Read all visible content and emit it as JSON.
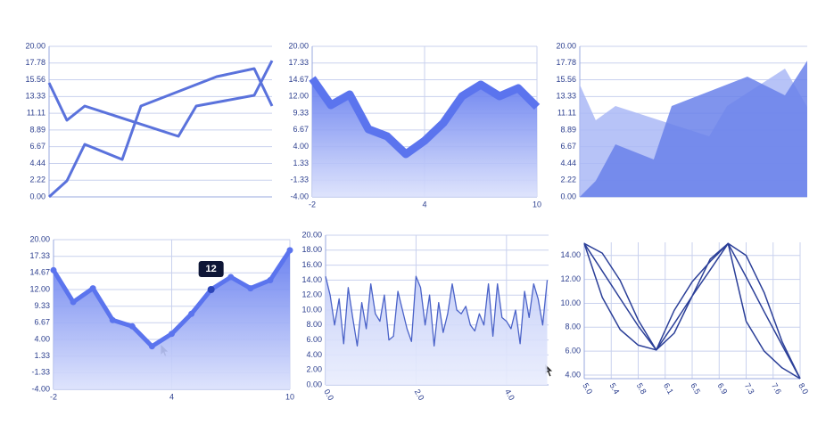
{
  "chart_data": [
    {
      "type": "line",
      "ylim": [
        0,
        20
      ],
      "xlim": [
        0,
        10
      ],
      "yticks": [
        {
          "value": 0,
          "label": "0.00"
        },
        {
          "value": 2.22,
          "label": "2.22"
        },
        {
          "value": 4.44,
          "label": "4.44"
        },
        {
          "value": 6.67,
          "label": "6.67"
        },
        {
          "value": 8.89,
          "label": "8.89"
        },
        {
          "value": 11.11,
          "label": "11.11"
        },
        {
          "value": 13.33,
          "label": "13.33"
        },
        {
          "value": 15.56,
          "label": "15.56"
        },
        {
          "value": 17.78,
          "label": "17.78"
        },
        {
          "value": 20,
          "label": "20.00"
        }
      ],
      "grid": true,
      "series": [
        {
          "color": "#5a72dc",
          "x": [
            0,
            0.8,
            1.6,
            5.8,
            6.6,
            9.2,
            10
          ],
          "values": [
            15.15,
            10.18,
            12.07,
            8.05,
            12.07,
            13.49,
            18.1
          ]
        },
        {
          "color": "#5a72dc",
          "x": [
            0,
            0.8,
            1.6,
            3.28,
            4.12,
            7.52,
            9.2,
            10
          ],
          "values": [
            0,
            2.13,
            6.98,
            4.97,
            12.07,
            15.98,
            17.04,
            12.07
          ]
        }
      ]
    },
    {
      "type": "area",
      "ylim": [
        -4,
        20
      ],
      "xlim": [
        -2,
        10
      ],
      "yticks": [
        {
          "value": -4,
          "label": "-4.00"
        },
        {
          "value": -1.33,
          "label": "-1.33"
        },
        {
          "value": 1.33,
          "label": "1.33"
        },
        {
          "value": 4,
          "label": "4.00"
        },
        {
          "value": 6.67,
          "label": "6.67"
        },
        {
          "value": 9.33,
          "label": "9.33"
        },
        {
          "value": 12,
          "label": "12.00"
        },
        {
          "value": 14.67,
          "label": "14.67"
        },
        {
          "value": 17.33,
          "label": "17.33"
        },
        {
          "value": 20,
          "label": "20.00"
        }
      ],
      "xticks": [
        -2,
        4,
        10
      ],
      "grid": true,
      "x": [
        -2,
        -1,
        0,
        1,
        2,
        3,
        4,
        5,
        6,
        7,
        8,
        9,
        10
      ],
      "series": [
        {
          "color": "#5b74ee",
          "values": [
            14.89,
            10.63,
            12.33,
            6.79,
            5.66,
            2.82,
            4.95,
            7.79,
            12.05,
            13.89,
            12.05,
            13.33,
            10.34
          ]
        }
      ]
    },
    {
      "type": "area",
      "ylim": [
        0,
        20
      ],
      "xlim": [
        0,
        10
      ],
      "yticks": [
        {
          "value": 0,
          "label": "0.00"
        },
        {
          "value": 2.22,
          "label": "2.22"
        },
        {
          "value": 4.44,
          "label": "4.44"
        },
        {
          "value": 6.67,
          "label": "6.67"
        },
        {
          "value": 8.89,
          "label": "8.89"
        },
        {
          "value": 11.11,
          "label": "11.11"
        },
        {
          "value": 13.33,
          "label": "13.33"
        },
        {
          "value": 15.56,
          "label": "15.56"
        },
        {
          "value": 17.78,
          "label": "17.78"
        },
        {
          "value": 20,
          "label": "20.00"
        }
      ],
      "grid": true,
      "series": [
        {
          "color": "#aab8f6",
          "x": [
            0,
            0.7,
            1.57,
            5.69,
            6.47,
            9.02,
            10
          ],
          "values": [
            14.91,
            10.18,
            12.07,
            8.05,
            12.07,
            17.04,
            11.95
          ]
        },
        {
          "color": "#6a81ea",
          "x": [
            0,
            0.7,
            1.57,
            3.25,
            4.04,
            7.37,
            9.02,
            10
          ],
          "values": [
            0,
            2.13,
            6.98,
            4.97,
            12.07,
            15.98,
            13.49,
            18.1
          ]
        }
      ]
    },
    {
      "type": "area",
      "markers": true,
      "ylim": [
        -4,
        20
      ],
      "xlim": [
        -2,
        10
      ],
      "yticks": [
        {
          "value": -4,
          "label": "-4.00"
        },
        {
          "value": -1.33,
          "label": "-1.33"
        },
        {
          "value": 1.33,
          "label": "1.33"
        },
        {
          "value": 4,
          "label": "4.00"
        },
        {
          "value": 6.67,
          "label": "6.67"
        },
        {
          "value": 9.33,
          "label": "9.33"
        },
        {
          "value": 12,
          "label": "12.00"
        },
        {
          "value": 14.67,
          "label": "14.67"
        },
        {
          "value": 17.33,
          "label": "17.33"
        },
        {
          "value": 20,
          "label": "20.00"
        }
      ],
      "xticks": [
        -2,
        4,
        10
      ],
      "grid": true,
      "x": [
        -2,
        -1,
        0,
        1,
        2,
        3,
        4,
        5,
        6,
        7,
        8,
        9,
        10
      ],
      "series": [
        {
          "color": "#5b74ee",
          "values": [
            15.1,
            10.0,
            12.2,
            7.1,
            6.1,
            2.9,
            4.9,
            8.1,
            12,
            14.0,
            12.2,
            13.5,
            18.3
          ]
        }
      ],
      "tooltip": "12"
    },
    {
      "type": "area",
      "ylim": [
        0,
        20
      ],
      "xlim": [
        0,
        4.93
      ],
      "yticks": [
        {
          "value": 0,
          "label": "0.00"
        },
        {
          "value": 2,
          "label": "2.00"
        },
        {
          "value": 4,
          "label": "4.00"
        },
        {
          "value": 6,
          "label": "6.00"
        },
        {
          "value": 8,
          "label": "8.00"
        },
        {
          "value": 10,
          "label": "10.00"
        },
        {
          "value": 12,
          "label": "12.00"
        },
        {
          "value": 14,
          "label": "14.00"
        },
        {
          "value": 16,
          "label": "16.00"
        },
        {
          "value": 18,
          "label": "18.00"
        },
        {
          "value": 20,
          "label": "20.00"
        }
      ],
      "xticks": [
        {
          "value": 0,
          "label": "0.0"
        },
        {
          "value": 2,
          "label": "2.0"
        },
        {
          "value": 4,
          "label": "4.0"
        }
      ],
      "grid": true,
      "x": [
        0,
        0.1,
        0.2,
        0.3,
        0.4,
        0.5,
        0.6,
        0.7,
        0.8,
        0.9,
        1,
        1.1,
        1.2,
        1.3,
        1.4,
        1.5,
        1.6,
        1.7,
        1.8,
        1.9,
        2,
        2.1,
        2.2,
        2.3,
        2.4,
        2.5,
        2.6,
        2.7,
        2.8,
        2.9,
        3,
        3.1,
        3.2,
        3.3,
        3.4,
        3.5,
        3.6,
        3.7,
        3.8,
        3.9,
        4,
        4.1,
        4.2,
        4.3,
        4.4,
        4.5,
        4.6,
        4.7,
        4.8,
        4.9
      ],
      "series": [
        {
          "color": "#4a62c8",
          "values": [
            14.5,
            12.0,
            8.0,
            11.5,
            5.5,
            13.0,
            9.0,
            5.2,
            11.0,
            7.5,
            13.5,
            9.5,
            8.5,
            12.0,
            6.0,
            6.5,
            12.5,
            10.0,
            7.5,
            5.8,
            14.5,
            13.0,
            8.0,
            12.0,
            5.2,
            11.0,
            7.0,
            9.5,
            13.5,
            10.0,
            9.5,
            10.5,
            8.0,
            7.2,
            9.5,
            8.0,
            13.5,
            6.5,
            13.5,
            9.0,
            8.5,
            7.5,
            10.0,
            5.5,
            12.5,
            9.0,
            13.5,
            11.5,
            8.0,
            14.0
          ]
        }
      ]
    },
    {
      "type": "line",
      "ylim": [
        3.7,
        15.1
      ],
      "xlim": [
        5,
        8
      ],
      "yticks": [
        {
          "value": 4,
          "label": "4.00"
        },
        {
          "value": 6,
          "label": "6.00"
        },
        {
          "value": 8,
          "label": "8.00"
        },
        {
          "value": 10,
          "label": "10.00"
        },
        {
          "value": 12,
          "label": "12.00"
        },
        {
          "value": 14,
          "label": "14.00"
        }
      ],
      "xticks": [
        {
          "value": 5,
          "label": "5.0"
        },
        {
          "value": 5.375,
          "label": "5.4"
        },
        {
          "value": 5.75,
          "label": "5.8"
        },
        {
          "value": 6.125,
          "label": "6.1"
        },
        {
          "value": 6.5,
          "label": "6.5"
        },
        {
          "value": 6.875,
          "label": "6.9"
        },
        {
          "value": 7.25,
          "label": "7.3"
        },
        {
          "value": 7.625,
          "label": "7.6"
        },
        {
          "value": 8,
          "label": "8.0"
        }
      ],
      "grid": true,
      "x": [
        5,
        5.25,
        5.5,
        5.75,
        6,
        6.25,
        6.5,
        6.75,
        7,
        7.25,
        7.5,
        7.75,
        8
      ],
      "series": [
        {
          "color": "#2b3f98",
          "values": [
            15,
            12.7,
            10.4,
            8.1,
            6.1,
            8.3,
            10.6,
            12.8,
            15,
            12.2,
            9.3,
            6.5,
            3.7
          ]
        },
        {
          "color": "#2b3f98",
          "values": [
            15,
            14.2,
            11.9,
            8.6,
            6.1,
            7.5,
            10.6,
            13.7,
            15,
            14,
            10.9,
            6.8,
            3.7
          ]
        },
        {
          "color": "#2b3f98",
          "values": [
            15,
            10.5,
            7.8,
            6.5,
            6.1,
            9.4,
            11.8,
            13.5,
            15,
            8.5,
            6.0,
            4.6,
            3.7
          ]
        }
      ]
    }
  ]
}
